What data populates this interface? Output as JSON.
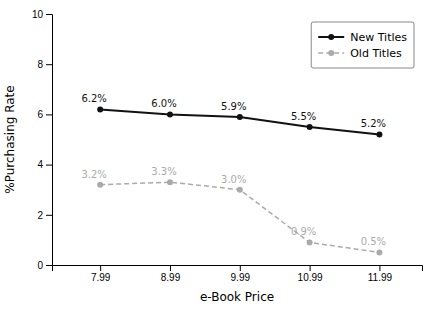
{
  "chart_data": {
    "type": "line",
    "xlabel": "e-Book Price",
    "ylabel": "%Purchasing Rate",
    "x": [
      7.99,
      8.99,
      9.99,
      10.99,
      11.99
    ],
    "series": [
      {
        "name": "New Titles",
        "color": "#111111",
        "line_style": "solid",
        "marker": "circle",
        "values": [
          6.2,
          6.0,
          5.9,
          5.5,
          5.2
        ],
        "value_labels": [
          "6.2%",
          "6.0%",
          "5.9%",
          "5.5%",
          "5.2%"
        ]
      },
      {
        "name": "Old Titles",
        "color": "#aaaaaa",
        "line_style": "dashed",
        "marker": "circle",
        "values": [
          3.2,
          3.3,
          3.0,
          0.9,
          0.5
        ],
        "value_labels": [
          "3.2%",
          "3.3%",
          "3.0%",
          "0.9%",
          "0.5%"
        ]
      }
    ],
    "xlim": [
      7.3,
      12.6
    ],
    "xticks": [
      7.99,
      8.99,
      9.99,
      10.99,
      11.99
    ],
    "ylim": [
      0,
      10
    ],
    "yticks": [
      0,
      2,
      4,
      6,
      8,
      10
    ],
    "data_labels": true,
    "legend": "upper right",
    "grid": false
  }
}
